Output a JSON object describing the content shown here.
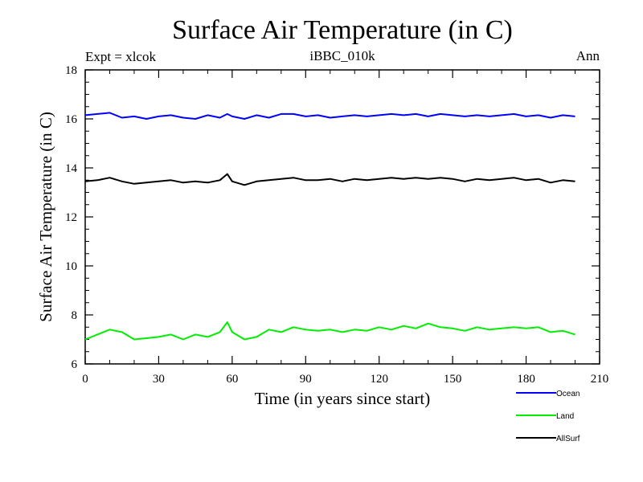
{
  "chart_data": {
    "type": "line",
    "title": "Surface Air Temperature (in C)",
    "subtitle": "iBBC_010k",
    "left_note": "Expt = xlcok",
    "right_note": "Ann",
    "xlabel": "Time (in years since start)",
    "ylabel": "Surface Air Temperature (in C)",
    "xlim": [
      0,
      210
    ],
    "ylim": [
      6,
      18
    ],
    "x_ticks": [
      0,
      30,
      60,
      90,
      120,
      150,
      180,
      210
    ],
    "y_ticks": [
      6,
      8,
      10,
      12,
      14,
      16,
      18
    ],
    "x": [
      0,
      5,
      10,
      15,
      20,
      25,
      30,
      35,
      40,
      45,
      50,
      55,
      58,
      60,
      65,
      70,
      75,
      80,
      85,
      90,
      95,
      100,
      105,
      110,
      115,
      120,
      125,
      130,
      135,
      140,
      145,
      150,
      155,
      160,
      165,
      170,
      175,
      180,
      185,
      190,
      195,
      200
    ],
    "series": [
      {
        "name": "Ocean",
        "color": "#0000ff",
        "values": [
          16.15,
          16.2,
          16.25,
          16.05,
          16.1,
          16.0,
          16.1,
          16.15,
          16.05,
          16.0,
          16.15,
          16.05,
          16.2,
          16.1,
          16.0,
          16.15,
          16.05,
          16.2,
          16.2,
          16.1,
          16.15,
          16.05,
          16.1,
          16.15,
          16.1,
          16.15,
          16.2,
          16.15,
          16.2,
          16.1,
          16.2,
          16.15,
          16.1,
          16.15,
          16.1,
          16.15,
          16.2,
          16.1,
          16.15,
          16.05,
          16.15,
          16.1
        ]
      },
      {
        "name": "Land",
        "color": "#00ee00",
        "values": [
          7.0,
          7.2,
          7.4,
          7.3,
          7.0,
          7.05,
          7.1,
          7.2,
          7.0,
          7.2,
          7.1,
          7.3,
          7.7,
          7.3,
          7.0,
          7.1,
          7.4,
          7.3,
          7.5,
          7.4,
          7.35,
          7.4,
          7.3,
          7.4,
          7.35,
          7.5,
          7.4,
          7.55,
          7.45,
          7.65,
          7.5,
          7.45,
          7.35,
          7.5,
          7.4,
          7.45,
          7.5,
          7.45,
          7.5,
          7.3,
          7.35,
          7.2
        ]
      },
      {
        "name": "AllSurf",
        "color": "#000000",
        "values": [
          13.45,
          13.5,
          13.6,
          13.45,
          13.35,
          13.4,
          13.45,
          13.5,
          13.4,
          13.45,
          13.4,
          13.5,
          13.75,
          13.45,
          13.3,
          13.45,
          13.5,
          13.55,
          13.6,
          13.5,
          13.5,
          13.55,
          13.45,
          13.55,
          13.5,
          13.55,
          13.6,
          13.55,
          13.6,
          13.55,
          13.6,
          13.55,
          13.45,
          13.55,
          13.5,
          13.55,
          13.6,
          13.5,
          13.55,
          13.4,
          13.5,
          13.45
        ]
      }
    ]
  }
}
